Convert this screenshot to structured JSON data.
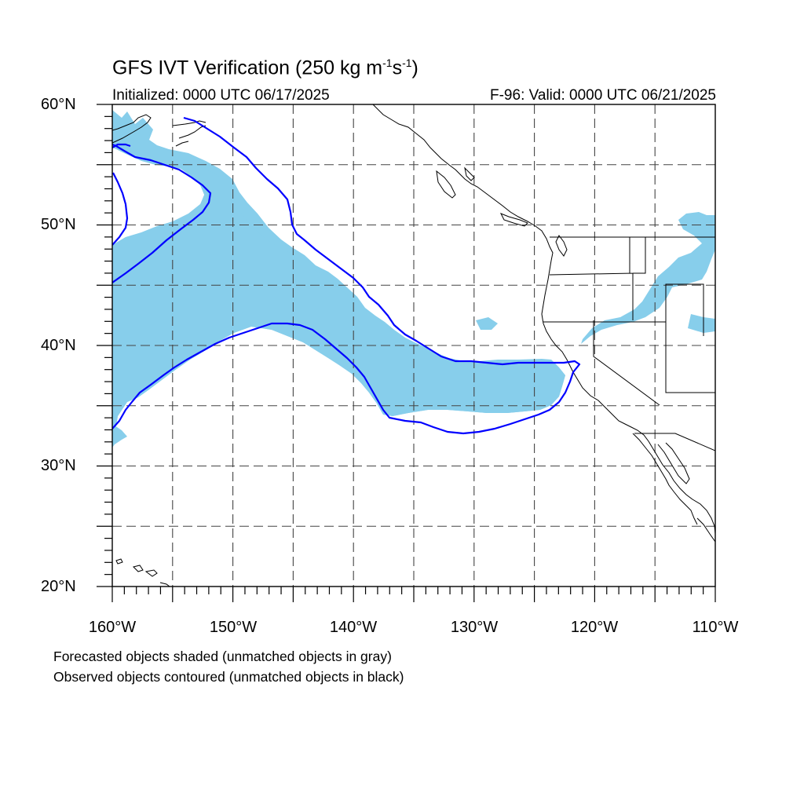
{
  "title_prefix": "GFS IVT Verification (250 kg m",
  "title_sup1": "-1",
  "title_mid": "s",
  "title_sup2": "-1",
  "title_suffix": ")",
  "initialized": "Initialized: 0000 UTC 06/17/2025",
  "valid": "F-96: Valid: 0000 UTC 06/21/2025",
  "lat_labels": [
    "60°N",
    "50°N",
    "40°N",
    "30°N",
    "20°N"
  ],
  "lon_labels": [
    "160°W",
    "150°W",
    "140°W",
    "130°W",
    "120°W",
    "110°W"
  ],
  "footer": [
    "Forecasted objects shaded (unmatched objects in gray)",
    "Observed objects contoured (unmatched objects in black)"
  ],
  "colors": {
    "forecast_fill": "#87ceeb",
    "observed_contour": "#0000ff",
    "coastline": "#000000",
    "grid": "#444444"
  },
  "map": {
    "projection": "cylindrical-equidistant",
    "lon_range": [
      -160,
      -110
    ],
    "lat_range": [
      20,
      60
    ],
    "grid_spacing_deg": 5,
    "grid_style": "dashed"
  }
}
